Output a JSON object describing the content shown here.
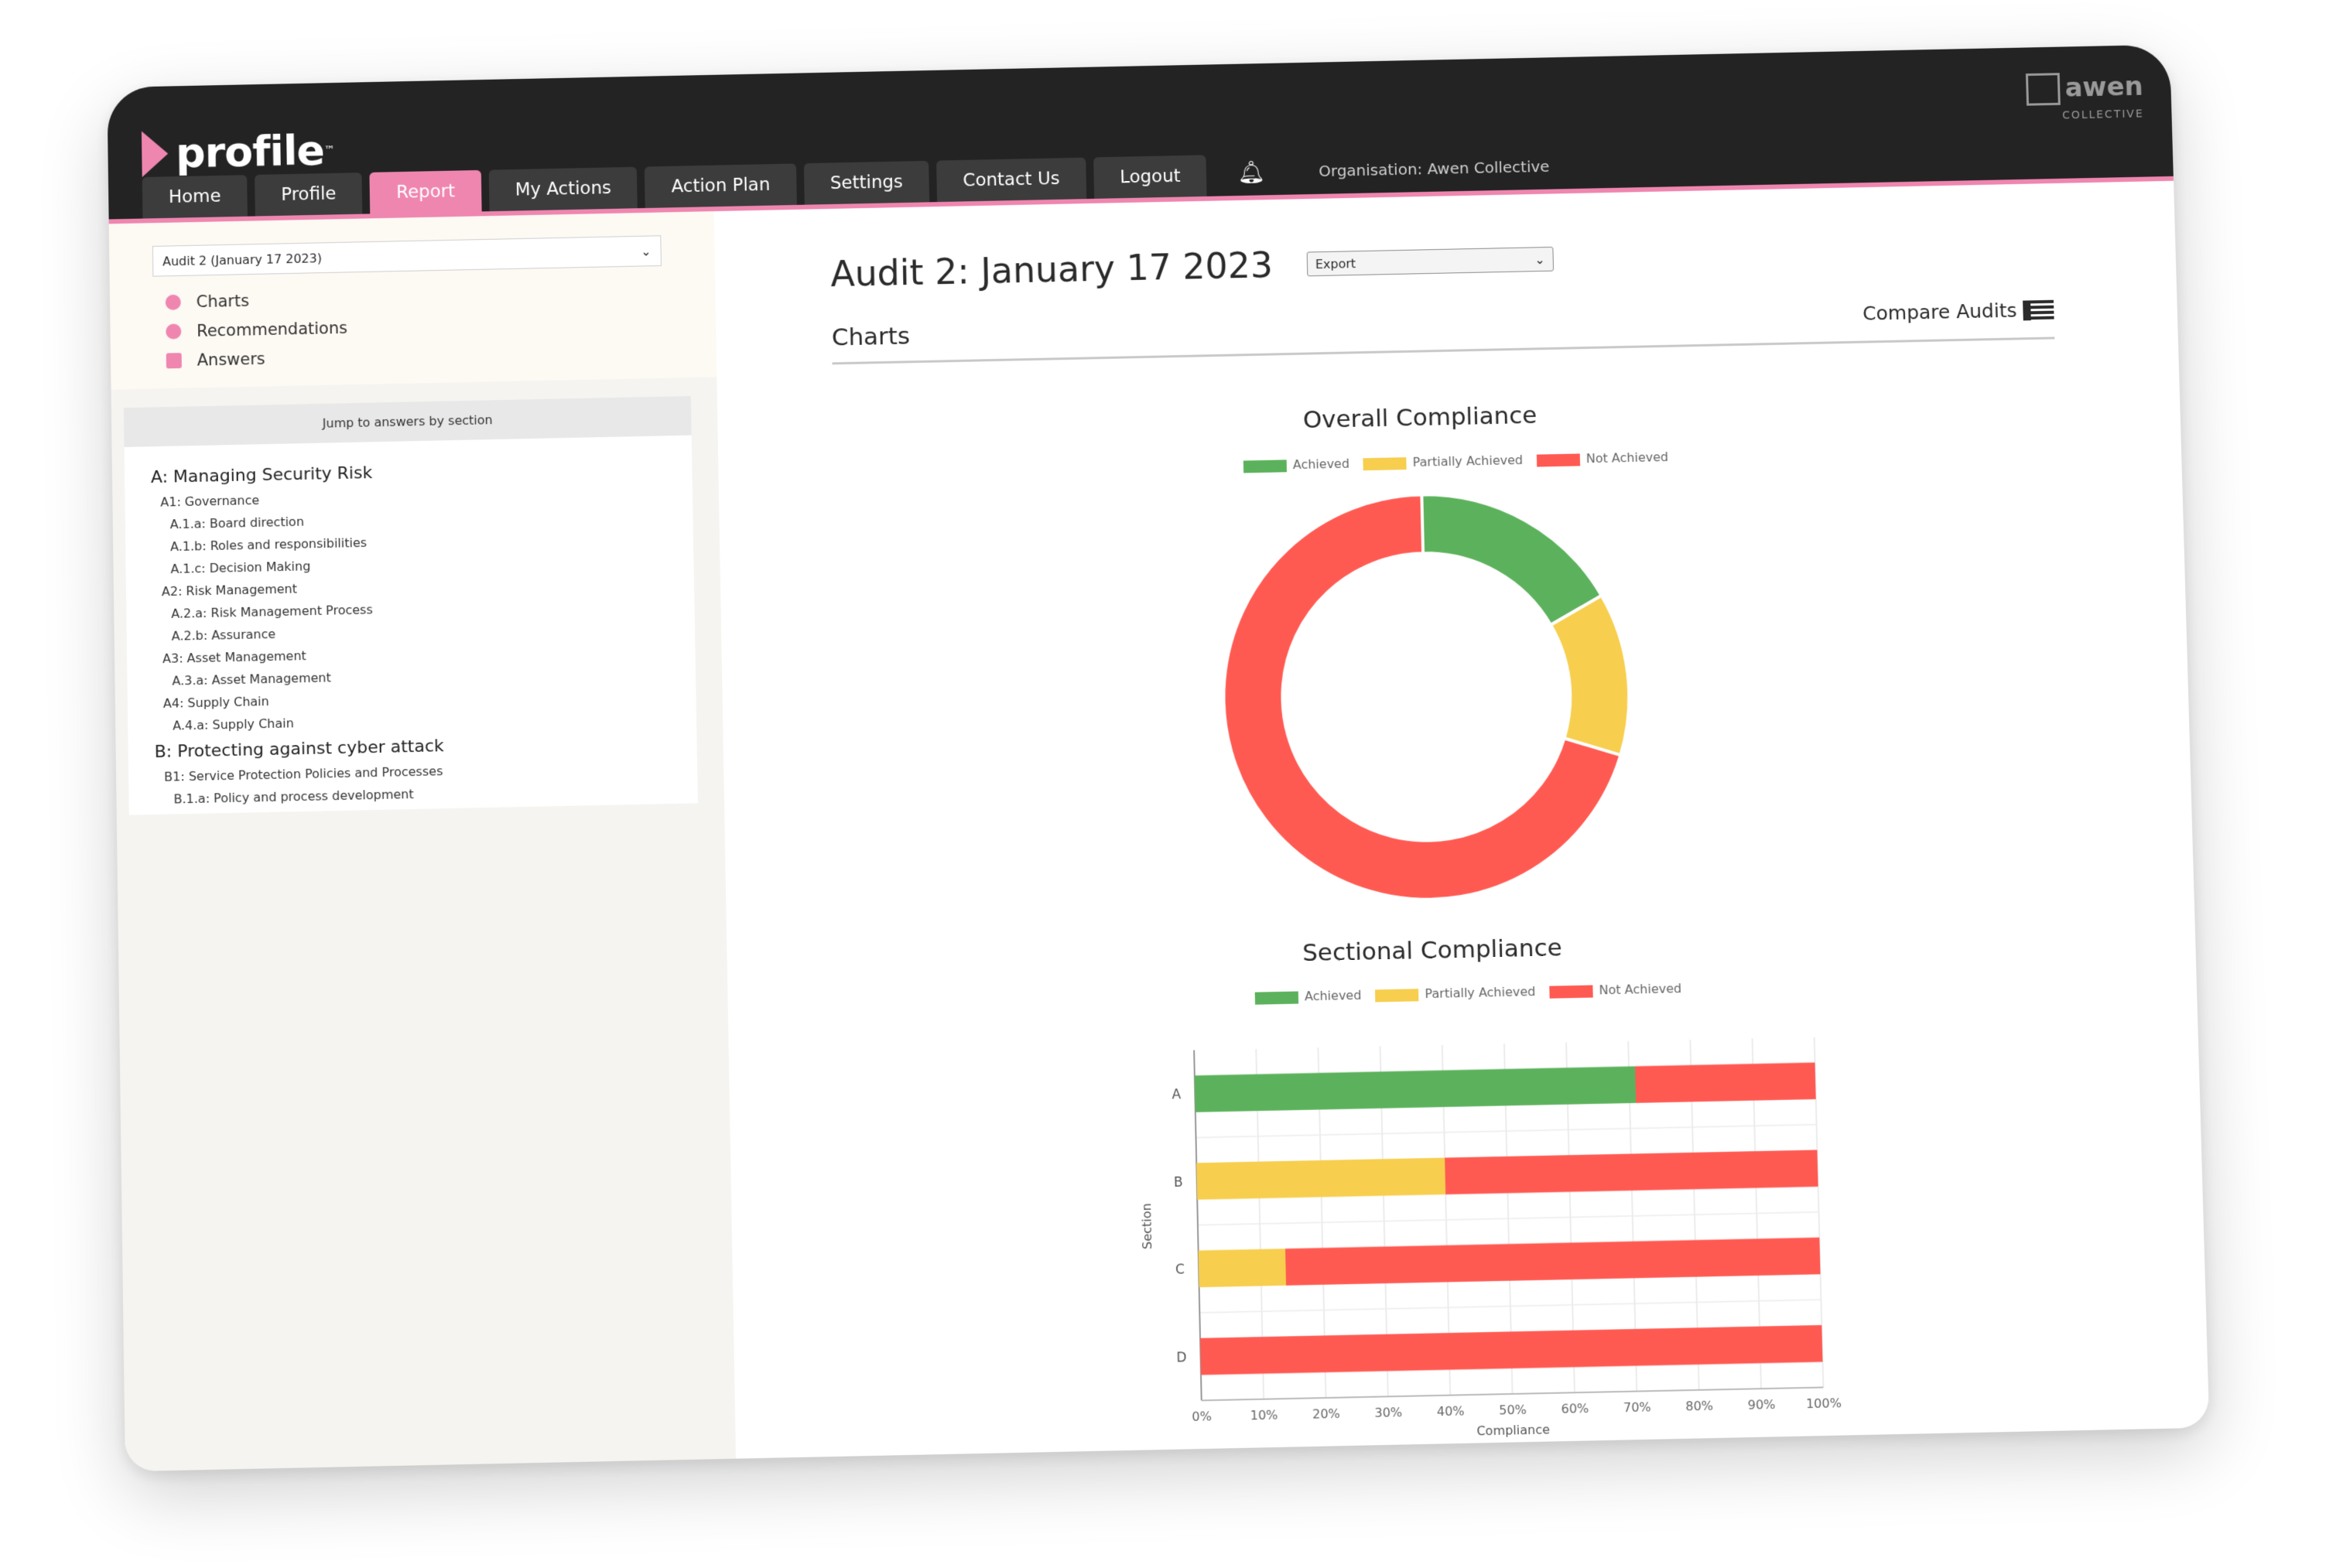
{
  "app": {
    "logo_text": "profile",
    "logo_tm": "™",
    "brand_name": "awen",
    "brand_sub": "COLLECTIVE",
    "organisation": "Organisation: Awen Collective"
  },
  "nav": {
    "tabs": [
      {
        "label": "Home"
      },
      {
        "label": "Profile"
      },
      {
        "label": "Report"
      },
      {
        "label": "My Actions"
      },
      {
        "label": "Action Plan"
      },
      {
        "label": "Settings"
      },
      {
        "label": "Contact Us"
      },
      {
        "label": "Logout"
      }
    ],
    "active_tab": "Report"
  },
  "sidebar": {
    "audit_select_value": "Audit 2 (January 17 2023)",
    "links": [
      {
        "label": "Charts",
        "icon": "pie-chart-icon"
      },
      {
        "label": "Recommendations",
        "icon": "comment-icon"
      },
      {
        "label": "Answers",
        "icon": "checkbox-icon"
      }
    ],
    "jump_label": "Jump to answers by section",
    "sections": [
      {
        "level": 0,
        "label": "A: Managing Security Risk"
      },
      {
        "level": 1,
        "label": "A1: Governance"
      },
      {
        "level": 2,
        "label": "A.1.a: Board direction"
      },
      {
        "level": 2,
        "label": "A.1.b: Roles and responsibilities"
      },
      {
        "level": 2,
        "label": "A.1.c: Decision Making"
      },
      {
        "level": 1,
        "label": "A2: Risk Management"
      },
      {
        "level": 2,
        "label": "A.2.a: Risk Management Process"
      },
      {
        "level": 2,
        "label": "A.2.b: Assurance"
      },
      {
        "level": 1,
        "label": "A3: Asset Management"
      },
      {
        "level": 2,
        "label": "A.3.a: Asset Management"
      },
      {
        "level": 1,
        "label": "A4: Supply Chain"
      },
      {
        "level": 2,
        "label": "A.4.a: Supply Chain"
      },
      {
        "level": 0,
        "label": "B: Protecting against cyber attack"
      },
      {
        "level": 1,
        "label": "B1: Service Protection Policies and Processes"
      },
      {
        "level": 2,
        "label": "B.1.a: Policy and process development"
      }
    ]
  },
  "main": {
    "page_title": "Audit 2:  January 17 2023",
    "export_label": "Export",
    "charts_heading": "Charts",
    "compare_label": "Compare Audits"
  },
  "colors": {
    "achieved": "#5cb25c",
    "partial": "#f7ce4e",
    "not_achieved": "#ff5a52",
    "accent": "#ef86b0"
  },
  "chart_data": [
    {
      "type": "pie",
      "variant": "doughnut",
      "title": "Overall Compliance",
      "categories": [
        "Achieved",
        "Partially Achieved",
        "Not Achieved"
      ],
      "values": [
        17,
        13,
        70
      ],
      "legend": "top"
    },
    {
      "type": "bar",
      "orientation": "horizontal",
      "stacked": true,
      "title": "Sectional Compliance",
      "categories": [
        "A",
        "B",
        "C",
        "D"
      ],
      "series": [
        {
          "name": "Achieved",
          "values": [
            71,
            0,
            0,
            0
          ]
        },
        {
          "name": "Partially Achieved",
          "values": [
            0,
            40,
            14,
            0
          ]
        },
        {
          "name": "Not Achieved",
          "values": [
            29,
            60,
            86,
            100
          ]
        }
      ],
      "xlabel": "Compliance",
      "ylabel": "Section",
      "xlim": [
        0,
        100
      ],
      "xticks": [
        "0%",
        "10%",
        "20%",
        "30%",
        "40%",
        "50%",
        "60%",
        "70%",
        "80%",
        "90%",
        "100%"
      ],
      "grid": true,
      "legend": "top"
    }
  ]
}
